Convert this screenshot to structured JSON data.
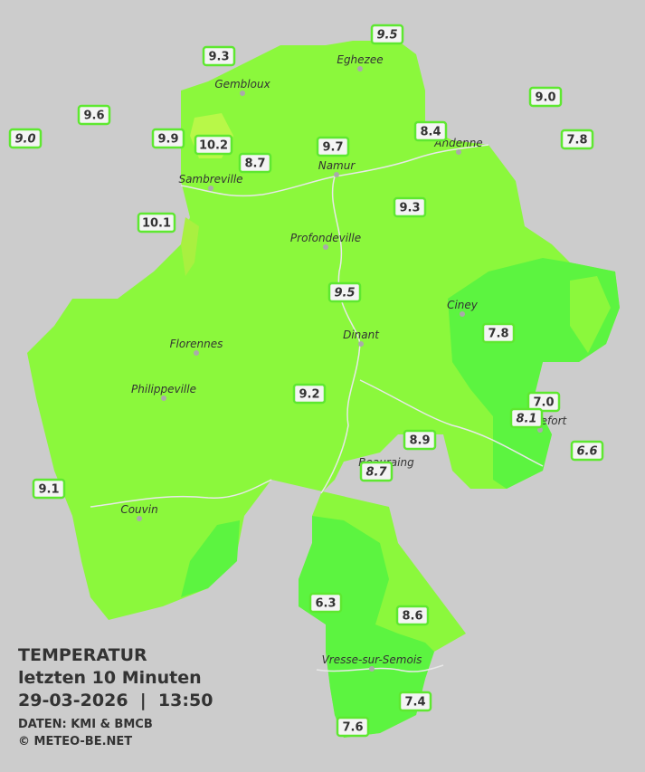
{
  "legend": {
    "title": "TEMPERATUR",
    "period": "letzten 10 Minuten",
    "datetime": "29-03-2026  |  13:50",
    "source": "DATEN: KMI & BMCB",
    "copyright": "© METEO-BE.NET"
  },
  "places": [
    {
      "name": "Eghezee"
    },
    {
      "name": "Gembloux"
    },
    {
      "name": "Andenne"
    },
    {
      "name": "Namur"
    },
    {
      "name": "Sambreville"
    },
    {
      "name": "Profondeville"
    },
    {
      "name": "Ciney"
    },
    {
      "name": "Dinant"
    },
    {
      "name": "Florennes"
    },
    {
      "name": "Philippeville"
    },
    {
      "name": "Rochefort"
    },
    {
      "name": "Beauraing"
    },
    {
      "name": "Couvin"
    },
    {
      "name": "Vresse-sur-Semois"
    }
  ],
  "stations": [
    {
      "label": "9.5",
      "italic": true
    },
    {
      "label": "9.3",
      "italic": false
    },
    {
      "label": "9.0",
      "italic": false
    },
    {
      "label": "9.6",
      "italic": false
    },
    {
      "label": "9.0",
      "italic": true
    },
    {
      "label": "9.9",
      "italic": false
    },
    {
      "label": "10.2",
      "italic": false
    },
    {
      "label": "9.7",
      "italic": false
    },
    {
      "label": "8.4",
      "italic": false
    },
    {
      "label": "7.8",
      "italic": false
    },
    {
      "label": "8.7",
      "italic": false
    },
    {
      "label": "9.3",
      "italic": false
    },
    {
      "label": "10.1",
      "italic": false
    },
    {
      "label": "9.5",
      "italic": true
    },
    {
      "label": "7.8",
      "italic": false
    },
    {
      "label": "7.0",
      "italic": false
    },
    {
      "label": "8.1",
      "italic": true
    },
    {
      "label": "9.2",
      "italic": false
    },
    {
      "label": "8.9",
      "italic": false
    },
    {
      "label": "8.7",
      "italic": true
    },
    {
      "label": "6.6",
      "italic": true
    },
    {
      "label": "9.1",
      "italic": false
    },
    {
      "label": "6.3",
      "italic": false
    },
    {
      "label": "8.6",
      "italic": false
    },
    {
      "label": "7.4",
      "italic": false
    },
    {
      "label": "7.6",
      "italic": false
    }
  ]
}
